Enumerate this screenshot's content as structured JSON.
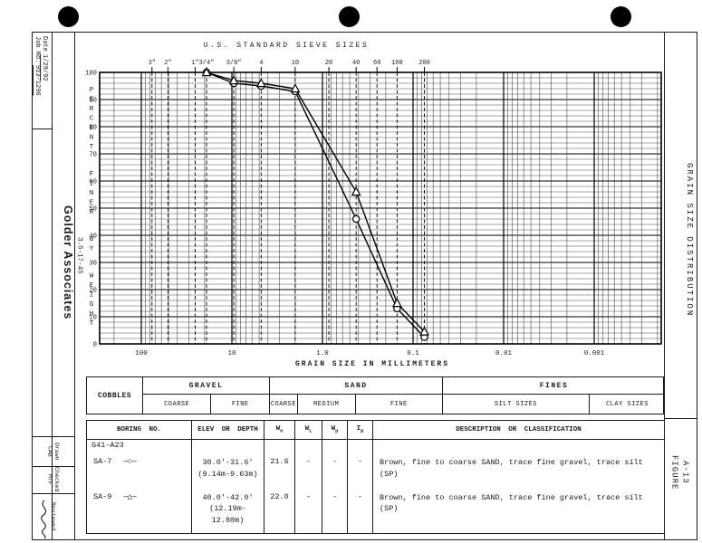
{
  "colors": {
    "ink": "#1b1b1b",
    "paper": "#ffffff"
  },
  "title_block": {
    "date_label": "Date",
    "date_value": "1/29/92",
    "job_label": "Job No.",
    "job_value": "913-1296",
    "company": "Golder Associates",
    "doc_number": "3.5-17-45",
    "drawn_label": "Drawn",
    "drawn_value": "CAB",
    "checked_label": "Checked",
    "checked_value": "MTF",
    "reviewed_label": "Reviewed"
  },
  "side_panel": {
    "title": "GRAIN SIZE DISTRIBUTION",
    "figure_label": "FIGURE",
    "figure_number": "A-13"
  },
  "chart_data": {
    "type": "line",
    "title": "U.S. STANDARD SIEVE SIZES",
    "xlabel": "GRAIN SIZE IN MILLIMETERS",
    "ylabel": "PERCENT FINER BY WEIGHT",
    "x_scale": "log",
    "xlim_mm": [
      288,
      0.0002
    ],
    "ylim": [
      0,
      100
    ],
    "grid": "on",
    "y_ticks": [
      100,
      90,
      80,
      70,
      60,
      50,
      40,
      30,
      20,
      10,
      0
    ],
    "x_decades": [
      {
        "label": "100",
        "value": 100
      },
      {
        "label": "10",
        "value": 10
      },
      {
        "label": "1.0",
        "value": 1
      },
      {
        "label": "0.1",
        "value": 0.1
      },
      {
        "label": "0.01",
        "value": 0.01
      },
      {
        "label": "0.001",
        "value": 0.001
      }
    ],
    "sieves": [
      {
        "label": "3\"",
        "mm": 76.2
      },
      {
        "label": "2\"",
        "mm": 50.8
      },
      {
        "label": "1\"",
        "mm": 25.4
      },
      {
        "label": "3/4\"",
        "mm": 19.05
      },
      {
        "label": "3/8\"",
        "mm": 9.525
      },
      {
        "label": "4",
        "mm": 4.75
      },
      {
        "label": "10",
        "mm": 2.0
      },
      {
        "label": "20",
        "mm": 0.85
      },
      {
        "label": "40",
        "mm": 0.425
      },
      {
        "label": "60",
        "mm": 0.25
      },
      {
        "label": "100",
        "mm": 0.15
      },
      {
        "label": "200",
        "mm": 0.075
      }
    ],
    "series": [
      {
        "name": "SA-7",
        "marker": "circle",
        "points": [
          [
            19.05,
            100
          ],
          [
            9.525,
            96
          ],
          [
            4.75,
            95
          ],
          [
            2.0,
            93
          ],
          [
            0.425,
            46
          ],
          [
            0.15,
            13
          ],
          [
            0.075,
            2.5
          ]
        ]
      },
      {
        "name": "SA-9",
        "marker": "triangle",
        "points": [
          [
            19.05,
            100
          ],
          [
            9.525,
            97
          ],
          [
            4.75,
            96
          ],
          [
            2.0,
            94
          ],
          [
            0.425,
            56
          ],
          [
            0.15,
            15
          ],
          [
            0.075,
            4.5
          ]
        ]
      }
    ]
  },
  "classification": {
    "cobbles_label": "COBBLES",
    "groups": [
      {
        "label": "GRAVEL",
        "subs": [
          "COARSE",
          "FINE"
        ]
      },
      {
        "label": "SAND",
        "subs": [
          "COARSE",
          "MEDIUM",
          "FINE"
        ]
      },
      {
        "label": "FINES",
        "subs": [
          "SILT  SIZES",
          "CLAY SIZES"
        ]
      }
    ]
  },
  "table": {
    "headers": [
      {
        "text": "BORING NO."
      },
      {
        "text": "ELEV OR DEPTH"
      },
      {
        "text": "W",
        "sub": "n"
      },
      {
        "text": "W",
        "sub": "L"
      },
      {
        "text": "W",
        "sub": "p"
      },
      {
        "text": "I",
        "sub": "p"
      },
      {
        "text": "DESCRIPTION OR CLASSIFICATION"
      }
    ],
    "group_row": "G41-A23",
    "rows": [
      {
        "boring": "SA-7",
        "marker": "circle",
        "symbol": "—○—",
        "depth_ft": "30.0'-31.6'",
        "depth_m": "(9.14m-9.63m)",
        "wn": "21.6",
        "wl": "-",
        "wp": "-",
        "ip": "-",
        "description": "Brown, fine to coarse SAND, trace fine gravel, trace silt (SP)"
      },
      {
        "boring": "SA-9",
        "marker": "triangle",
        "symbol": "—△—",
        "depth_ft": "40.0'-42.0'",
        "depth_m": "(12.19m-12.80m)",
        "wn": "22.0",
        "wl": "-",
        "wp": "-",
        "ip": "-",
        "description": "Brown, fine to coarse SAND, trace fine gravel, trace silt (SP)"
      }
    ]
  }
}
